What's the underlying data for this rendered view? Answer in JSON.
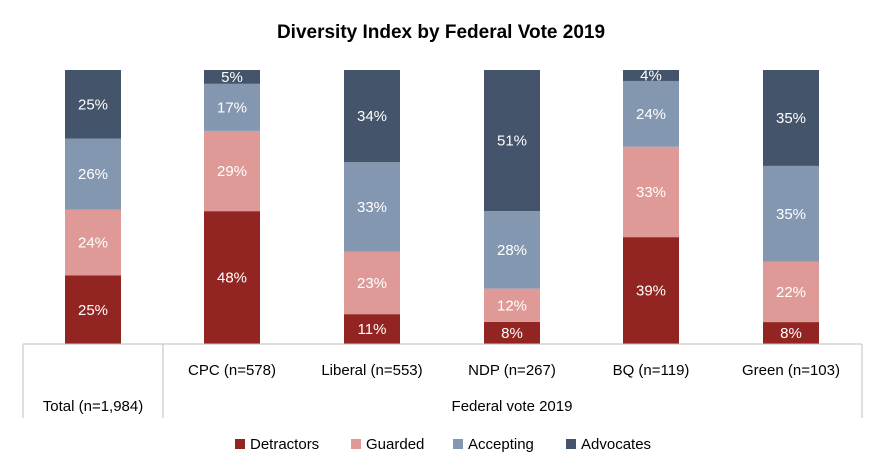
{
  "chart_data": {
    "type": "bar",
    "stacked": true,
    "title": "Diversity Index by Federal Vote 2019",
    "categories": [
      "Total (n=1,984)",
      "CPC (n=578)",
      "Liberal (n=553)",
      "NDP (n=267)",
      "BQ (n=119)",
      "Green (n=103)"
    ],
    "group_label": "Federal vote 2019",
    "series": [
      {
        "name": "Detractors",
        "color": "#922521",
        "values": [
          25,
          48,
          11,
          8,
          39,
          8
        ]
      },
      {
        "name": "Guarded",
        "color": "#df9a98",
        "values": [
          24,
          29,
          23,
          12,
          33,
          22
        ]
      },
      {
        "name": "Accepting",
        "color": "#8497b0",
        "values": [
          26,
          17,
          33,
          28,
          24,
          35
        ]
      },
      {
        "name": "Advocates",
        "color": "#44546a",
        "values": [
          25,
          5,
          34,
          51,
          4,
          35
        ]
      }
    ],
    "value_suffix": "%",
    "legend_position": "bottom",
    "grid": false
  }
}
